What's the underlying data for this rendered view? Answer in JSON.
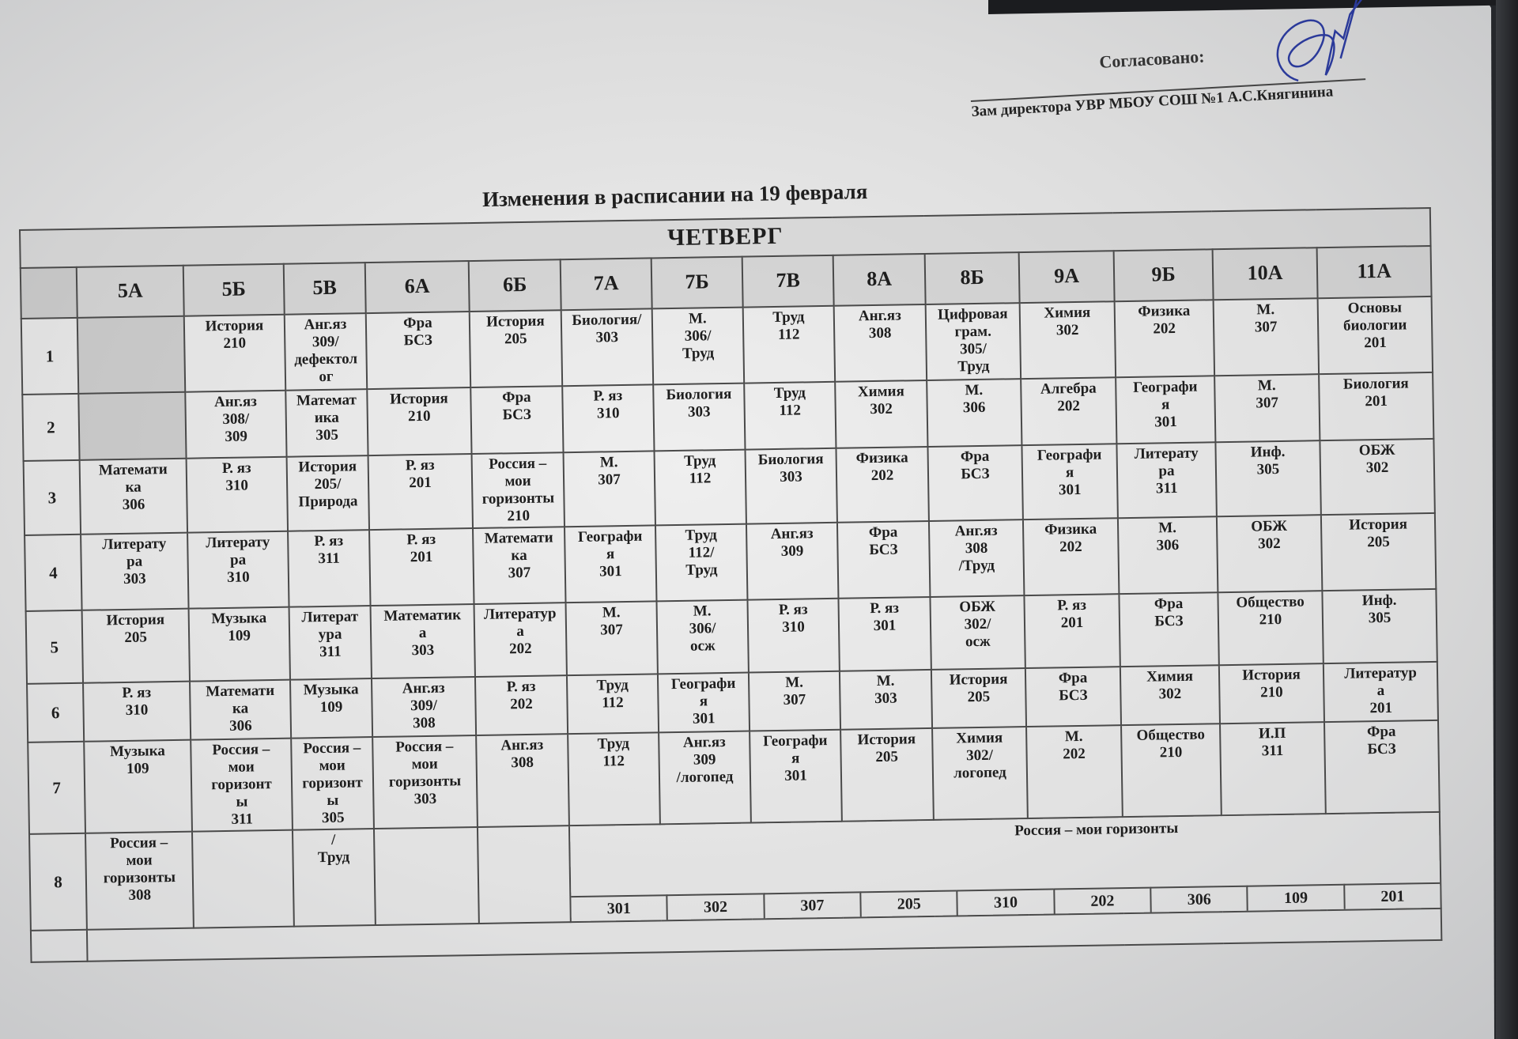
{
  "approval": {
    "label": "Согласовано:",
    "signer": "Зам директора УВР МБОУ СОШ №1 А.С.Княгинина",
    "signature_color": "#2b3a9a"
  },
  "title": "Изменения в расписании на 19 февраля",
  "table": {
    "day": "ЧЕТВЕРГ",
    "classes": [
      "5А",
      "5Б",
      "5В",
      "6А",
      "6Б",
      "7А",
      "7Б",
      "7В",
      "8А",
      "8Б",
      "9А",
      "9Б",
      "10А",
      "11А"
    ],
    "rows": [
      {
        "num": "1",
        "cells": [
          "",
          "История\n210",
          "Анг.яз\n309/\nдефектол\nог",
          "Фра\nБСЗ",
          "История\n205",
          "Биология/\n303",
          "М.\n306/\nТруд",
          "Труд\n112",
          "Анг.яз\n308",
          "Цифровая\nграм.\n305/\nТруд",
          "Химия\n302",
          "Физика\n202",
          "М.\n307",
          "Основы\nбиологии\n201"
        ]
      },
      {
        "num": "2",
        "cells": [
          "",
          "Анг.яз\n308/\n309",
          "Математ\nика\n305",
          "История\n210",
          "Фра\nБСЗ",
          "Р. яз\n310",
          "Биология\n303",
          "Труд\n112",
          "Химия\n302",
          "М.\n306",
          "Алгебра\n202",
          "Географи\nя\n301",
          "М.\n307",
          "Биология\n201"
        ]
      },
      {
        "num": "3",
        "cells": [
          "Математи\nка\n306",
          "Р. яз\n310",
          "История\n205/\nПрирода",
          "Р. яз\n201",
          "Россия –\nмои\nгоризонты\n210",
          "М.\n307",
          "Труд\n112",
          "Биология\n303",
          "Физика\n202",
          "Фра\nБСЗ",
          "Географи\nя\n301",
          "Литерату\nра\n311",
          "Инф.\n305",
          "ОБЖ\n302"
        ]
      },
      {
        "num": "4",
        "cells": [
          "Литерату\nра\n303",
          "Литерату\nра\n310",
          "Р. яз\n311",
          "Р. яз\n201",
          "Математи\nка\n307",
          "Географи\nя\n301",
          "Труд\n112/\nТруд",
          "Анг.яз\n309",
          "Фра\nБСЗ",
          "Анг.яз\n308\n/Труд",
          "Физика\n202",
          "М.\n306",
          "ОБЖ\n302",
          "История\n205"
        ]
      },
      {
        "num": "5",
        "cells": [
          "История\n205",
          "Музыка\n109",
          "Литерат\nура\n311",
          "Математик\nа\n303",
          "Литератур\nа\n202",
          "М.\n307",
          "М.\n306/\nосж",
          "Р. яз\n310",
          "Р. яз\n301",
          "ОБЖ\n302/\nосж",
          "Р. яз\n201",
          "Фра\nБСЗ",
          "Общество\n210",
          "Инф.\n305"
        ]
      },
      {
        "num": "6",
        "cells": [
          "Р. яз\n310",
          "Математи\nка\n306",
          "Музыка\n109",
          "Анг.яз\n309/\n308",
          "Р. яз\n202",
          "Труд\n112",
          "Географи\nя\n301",
          "М.\n307",
          "М.\n303",
          "История\n205",
          "Фра\nБСЗ",
          "Химия\n302",
          "История\n210",
          "Литератур\nа\n201"
        ]
      },
      {
        "num": "7",
        "cells": [
          "Музыка\n109",
          "Россия –\nмои\nгоризонт\nы\n311",
          "Россия –\nмои\nгоризонт\nы\n305",
          "Россия –\nмои\nгоризонты\n303",
          "Анг.яз\n308",
          "Труд\n112",
          "Анг.яз\n309\n/логопед",
          "Географи\nя\n301",
          "История\n205",
          "Химия\n302/\nлогопед",
          "М.\n202",
          "Общество\n210",
          "И.П\n311",
          "Фра\nБСЗ"
        ]
      }
    ],
    "row8": {
      "num": "8",
      "cells": [
        "Россия –\nмои\nгоризонты\n308",
        "",
        "/\nТруд",
        "",
        ""
      ],
      "merged_label": "Россия – мои горизонты",
      "merged_rooms": [
        "301",
        "302",
        "307",
        "205",
        "310",
        "202",
        "306",
        "109",
        "201"
      ]
    }
  }
}
